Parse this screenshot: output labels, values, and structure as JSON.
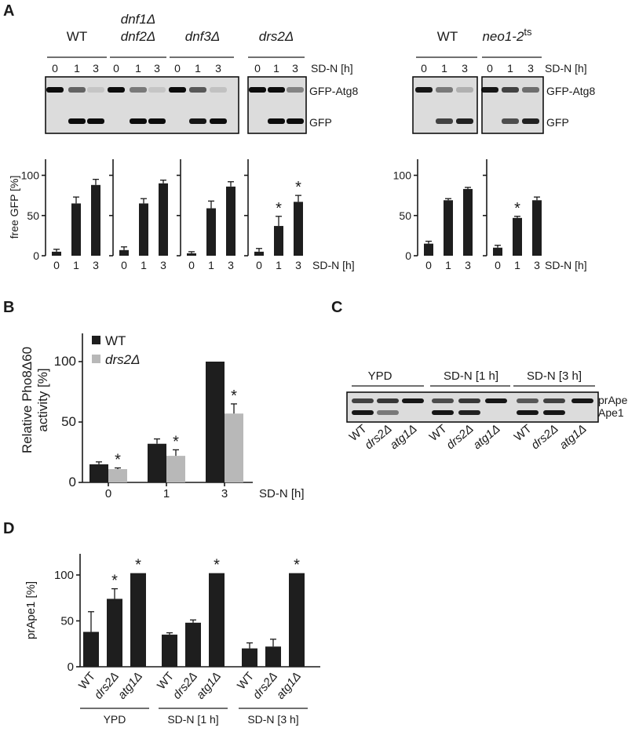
{
  "panels": {
    "a": "A",
    "b": "B",
    "c": "C",
    "d": "D"
  },
  "panel_a": {
    "blot": {
      "groups": [
        {
          "lines": [
            "WT"
          ],
          "italic": false
        },
        {
          "lines": [
            "dnf1Δ",
            "dnf2Δ"
          ],
          "italic": true
        },
        {
          "lines": [
            "dnf3Δ"
          ],
          "italic": true
        },
        {
          "lines": [
            "drs2Δ"
          ],
          "italic": true
        },
        {
          "lines": [
            "WT"
          ],
          "italic": false
        },
        {
          "lines": [
            "neo1-2"
          ],
          "italic": true,
          "superscript": "ts"
        }
      ],
      "lane_labels": [
        "0",
        "1",
        "3"
      ],
      "time_label": "SD-N [h]",
      "band_upper": "GFP-Atg8",
      "band_lower": "GFP"
    },
    "chart_ylabel": "free GFP [%]",
    "chart_xlabel": "SD-N [h]",
    "yticks": [
      "0",
      "50",
      "100"
    ],
    "xticks": [
      "0",
      "1",
      "3"
    ],
    "star": "*"
  },
  "panel_b": {
    "ylabel_lines": [
      "Relative Pho8Δ60",
      "activity [%]"
    ],
    "xlabel": "SD-N [h]",
    "yticks": [
      "0",
      "50",
      "100"
    ],
    "xticks": [
      "0",
      "1",
      "3"
    ],
    "legend": [
      {
        "label": "WT",
        "italic": false
      },
      {
        "label": "drs2Δ",
        "italic": true
      }
    ],
    "star": "*"
  },
  "panel_c": {
    "conditions": [
      "YPD",
      "SD-N [1 h]",
      "SD-N [3 h]"
    ],
    "strains": [
      "WT",
      "drs2Δ",
      "atg1Δ"
    ],
    "band_upper": "prApe1",
    "band_lower": "Ape1"
  },
  "panel_d": {
    "ylabel": "prApe1 [%]",
    "yticks": [
      "0",
      "50",
      "100"
    ],
    "conditions": [
      "YPD",
      "SD-N [1 h]",
      "SD-N [3 h]"
    ],
    "strains": [
      "WT",
      "drs2Δ",
      "atg1Δ"
    ],
    "star": "*"
  },
  "colors": {
    "wt": "#1e1e1e",
    "drs2": "#b8b8b8",
    "axis": "#1a1a1a"
  },
  "chart_data": [
    {
      "type": "bar",
      "panel": "A",
      "ylabel": "free GFP [%]",
      "xlabel": "SD-N [h]",
      "ylim": [
        0,
        120
      ],
      "categories": [
        "0",
        "1",
        "3"
      ],
      "series": [
        {
          "name": "WT",
          "values": [
            5,
            65,
            88
          ],
          "errors": [
            3,
            8,
            7
          ],
          "significant": [
            false,
            false,
            false
          ]
        },
        {
          "name": "dnf1Δ dnf2Δ",
          "values": [
            7,
            65,
            90
          ],
          "errors": [
            4,
            6,
            4
          ],
          "significant": [
            false,
            false,
            false
          ]
        },
        {
          "name": "dnf3Δ",
          "values": [
            3,
            59,
            86
          ],
          "errors": [
            2,
            9,
            6
          ],
          "significant": [
            false,
            false,
            false
          ]
        },
        {
          "name": "drs2Δ",
          "values": [
            5,
            37,
            67
          ],
          "errors": [
            4,
            12,
            8
          ],
          "significant": [
            false,
            true,
            true
          ]
        },
        {
          "name": "WT",
          "values": [
            15,
            69,
            83
          ],
          "errors": [
            3,
            2,
            2
          ],
          "significant": [
            false,
            false,
            false
          ]
        },
        {
          "name": "neo1-2ts",
          "values": [
            10,
            47,
            69
          ],
          "errors": [
            3,
            2,
            4
          ],
          "significant": [
            false,
            true,
            false
          ]
        }
      ]
    },
    {
      "type": "bar",
      "panel": "B",
      "ylabel": "Relative Pho8Δ60 activity [%]",
      "xlabel": "SD-N [h]",
      "ylim": [
        0,
        120
      ],
      "categories": [
        "0",
        "1",
        "3"
      ],
      "series": [
        {
          "name": "WT",
          "values": [
            15,
            32,
            100
          ],
          "errors": [
            2,
            4,
            0
          ],
          "significant": [
            false,
            false,
            false
          ]
        },
        {
          "name": "drs2Δ",
          "values": [
            11,
            22,
            57
          ],
          "errors": [
            1,
            5,
            8
          ],
          "significant": [
            true,
            true,
            true
          ]
        }
      ]
    },
    {
      "type": "bar",
      "panel": "D",
      "ylabel": "prApe1 [%]",
      "ylim": [
        0,
        120
      ],
      "categories": [
        "YPD",
        "SD-N [1 h]",
        "SD-N [3 h]"
      ],
      "series": [
        {
          "name": "WT",
          "values": [
            38,
            35,
            20
          ],
          "errors": [
            22,
            2,
            6
          ],
          "significant": [
            false,
            false,
            false
          ]
        },
        {
          "name": "drs2Δ",
          "values": [
            74,
            48,
            22
          ],
          "errors": [
            11,
            3,
            8
          ],
          "significant": [
            true,
            false,
            false
          ]
        },
        {
          "name": "atg1Δ",
          "values": [
            102,
            102,
            102
          ],
          "errors": [
            0,
            0,
            0
          ],
          "significant": [
            true,
            true,
            true
          ]
        }
      ]
    }
  ]
}
